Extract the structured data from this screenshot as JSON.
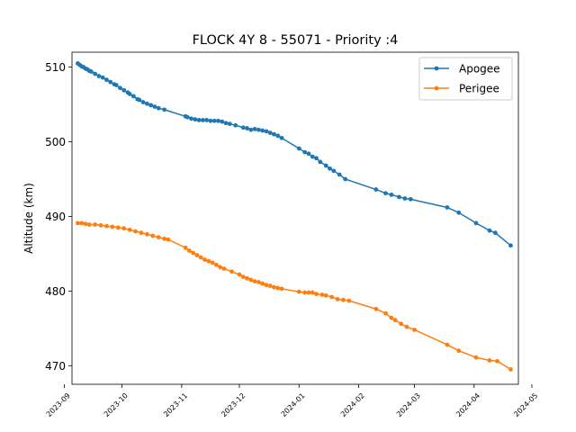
{
  "chart_data": {
    "type": "line",
    "title": "FLOCK 4Y 8 - 55071 - Priority :4",
    "xlabel": "",
    "ylabel": "Altitude (km)",
    "x_is_date": true,
    "xlim": [
      "2023-09-05",
      "2024-04-24"
    ],
    "ylim": [
      467.5,
      512.0
    ],
    "x_ticks": [
      "2023-09",
      "2023-10",
      "2023-11",
      "2023-12",
      "2024-01",
      "2024-02",
      "2024-03",
      "2024-04",
      "2024-05"
    ],
    "y_ticks": [
      470,
      480,
      490,
      500,
      510
    ],
    "grid": false,
    "legend": {
      "position": "top-right"
    },
    "series": [
      {
        "name": "Apogee",
        "color": "#1f77b4",
        "points": [
          [
            "2023-09-08",
            510.5
          ],
          [
            "2023-09-09",
            510.3
          ],
          [
            "2023-09-10",
            510.1
          ],
          [
            "2023-09-11",
            510.0
          ],
          [
            "2023-09-12",
            509.8
          ],
          [
            "2023-09-13",
            509.7
          ],
          [
            "2023-09-14",
            509.5
          ],
          [
            "2023-09-15",
            509.4
          ],
          [
            "2023-09-17",
            509.1
          ],
          [
            "2023-09-19",
            508.8
          ],
          [
            "2023-09-21",
            508.6
          ],
          [
            "2023-09-23",
            508.3
          ],
          [
            "2023-09-25",
            508.0
          ],
          [
            "2023-09-27",
            507.7
          ],
          [
            "2023-09-28",
            507.6
          ],
          [
            "2023-09-30",
            507.2
          ],
          [
            "2023-10-02",
            506.9
          ],
          [
            "2023-10-04",
            506.6
          ],
          [
            "2023-10-05",
            506.4
          ],
          [
            "2023-10-07",
            506.1
          ],
          [
            "2023-10-09",
            505.7
          ],
          [
            "2023-10-10",
            505.6
          ],
          [
            "2023-10-12",
            505.3
          ],
          [
            "2023-10-14",
            505.1
          ],
          [
            "2023-10-16",
            504.9
          ],
          [
            "2023-10-18",
            504.7
          ],
          [
            "2023-10-20",
            504.5
          ],
          [
            "2023-10-23",
            504.3
          ],
          [
            "2023-11-03",
            503.4
          ],
          [
            "2023-11-04",
            503.3
          ],
          [
            "2023-11-06",
            503.1
          ],
          [
            "2023-11-08",
            503.0
          ],
          [
            "2023-11-10",
            502.9
          ],
          [
            "2023-11-12",
            502.9
          ],
          [
            "2023-11-14",
            502.9
          ],
          [
            "2023-11-16",
            502.8
          ],
          [
            "2023-11-18",
            502.8
          ],
          [
            "2023-11-20",
            502.8
          ],
          [
            "2023-11-22",
            502.7
          ],
          [
            "2023-11-24",
            502.5
          ],
          [
            "2023-11-26",
            502.4
          ],
          [
            "2023-11-29",
            502.2
          ],
          [
            "2023-12-03",
            501.9
          ],
          [
            "2023-12-05",
            501.8
          ],
          [
            "2023-12-07",
            501.6
          ],
          [
            "2023-12-09",
            501.7
          ],
          [
            "2023-12-11",
            501.6
          ],
          [
            "2023-12-13",
            501.5
          ],
          [
            "2023-12-15",
            501.4
          ],
          [
            "2023-12-17",
            501.2
          ],
          [
            "2023-12-19",
            501.0
          ],
          [
            "2023-12-21",
            500.8
          ],
          [
            "2023-12-23",
            500.5
          ],
          [
            "2024-01-01",
            499.1
          ],
          [
            "2024-01-04",
            498.6
          ],
          [
            "2024-01-06",
            498.4
          ],
          [
            "2024-01-08",
            498.0
          ],
          [
            "2024-01-10",
            497.8
          ],
          [
            "2024-01-12",
            497.3
          ],
          [
            "2024-01-15",
            496.8
          ],
          [
            "2024-01-17",
            496.4
          ],
          [
            "2024-01-19",
            496.1
          ],
          [
            "2024-01-22",
            495.6
          ],
          [
            "2024-01-25",
            495.0
          ],
          [
            "2024-02-10",
            493.6
          ],
          [
            "2024-02-15",
            493.1
          ],
          [
            "2024-02-18",
            492.9
          ],
          [
            "2024-02-22",
            492.6
          ],
          [
            "2024-02-25",
            492.4
          ],
          [
            "2024-02-28",
            492.3
          ],
          [
            "2024-03-18",
            491.2
          ],
          [
            "2024-03-24",
            490.5
          ],
          [
            "2024-04-02",
            489.1
          ],
          [
            "2024-04-09",
            488.1
          ],
          [
            "2024-04-12",
            487.8
          ],
          [
            "2024-04-20",
            486.1
          ]
        ]
      },
      {
        "name": "Perigee",
        "color": "#ff7f0e",
        "points": [
          [
            "2023-09-08",
            489.1
          ],
          [
            "2023-09-10",
            489.1
          ],
          [
            "2023-09-12",
            489.0
          ],
          [
            "2023-09-14",
            488.9
          ],
          [
            "2023-09-17",
            488.9
          ],
          [
            "2023-09-20",
            488.8
          ],
          [
            "2023-09-23",
            488.7
          ],
          [
            "2023-09-26",
            488.6
          ],
          [
            "2023-09-29",
            488.5
          ],
          [
            "2023-10-02",
            488.4
          ],
          [
            "2023-10-05",
            488.2
          ],
          [
            "2023-10-08",
            488.0
          ],
          [
            "2023-10-11",
            487.8
          ],
          [
            "2023-10-14",
            487.6
          ],
          [
            "2023-10-17",
            487.4
          ],
          [
            "2023-10-20",
            487.2
          ],
          [
            "2023-10-23",
            487.0
          ],
          [
            "2023-10-25",
            486.9
          ],
          [
            "2023-11-03",
            485.8
          ],
          [
            "2023-11-05",
            485.4
          ],
          [
            "2023-11-07",
            485.1
          ],
          [
            "2023-11-09",
            484.8
          ],
          [
            "2023-11-11",
            484.5
          ],
          [
            "2023-11-13",
            484.2
          ],
          [
            "2023-11-15",
            484.0
          ],
          [
            "2023-11-17",
            483.8
          ],
          [
            "2023-11-19",
            483.5
          ],
          [
            "2023-11-21",
            483.2
          ],
          [
            "2023-11-23",
            483.0
          ],
          [
            "2023-11-27",
            482.6
          ],
          [
            "2023-12-01",
            482.2
          ],
          [
            "2023-12-03",
            481.9
          ],
          [
            "2023-12-05",
            481.7
          ],
          [
            "2023-12-07",
            481.5
          ],
          [
            "2023-12-09",
            481.3
          ],
          [
            "2023-12-11",
            481.2
          ],
          [
            "2023-12-13",
            481.0
          ],
          [
            "2023-12-15",
            480.8
          ],
          [
            "2023-12-17",
            480.7
          ],
          [
            "2023-12-19",
            480.5
          ],
          [
            "2023-12-21",
            480.4
          ],
          [
            "2023-12-23",
            480.3
          ],
          [
            "2024-01-01",
            479.9
          ],
          [
            "2024-01-04",
            479.8
          ],
          [
            "2024-01-06",
            479.8
          ],
          [
            "2024-01-08",
            479.8
          ],
          [
            "2024-01-10",
            479.6
          ],
          [
            "2024-01-13",
            479.5
          ],
          [
            "2024-01-15",
            479.4
          ],
          [
            "2024-01-18",
            479.2
          ],
          [
            "2024-01-21",
            478.9
          ],
          [
            "2024-01-24",
            478.8
          ],
          [
            "2024-01-27",
            478.7
          ],
          [
            "2024-02-10",
            477.6
          ],
          [
            "2024-02-15",
            477.0
          ],
          [
            "2024-02-18",
            476.4
          ],
          [
            "2024-02-20",
            476.1
          ],
          [
            "2024-02-23",
            475.6
          ],
          [
            "2024-02-26",
            475.2
          ],
          [
            "2024-03-01",
            474.8
          ],
          [
            "2024-03-18",
            472.8
          ],
          [
            "2024-03-24",
            472.0
          ],
          [
            "2024-04-02",
            471.1
          ],
          [
            "2024-04-09",
            470.7
          ],
          [
            "2024-04-13",
            470.6
          ],
          [
            "2024-04-20",
            469.5
          ]
        ]
      }
    ]
  }
}
